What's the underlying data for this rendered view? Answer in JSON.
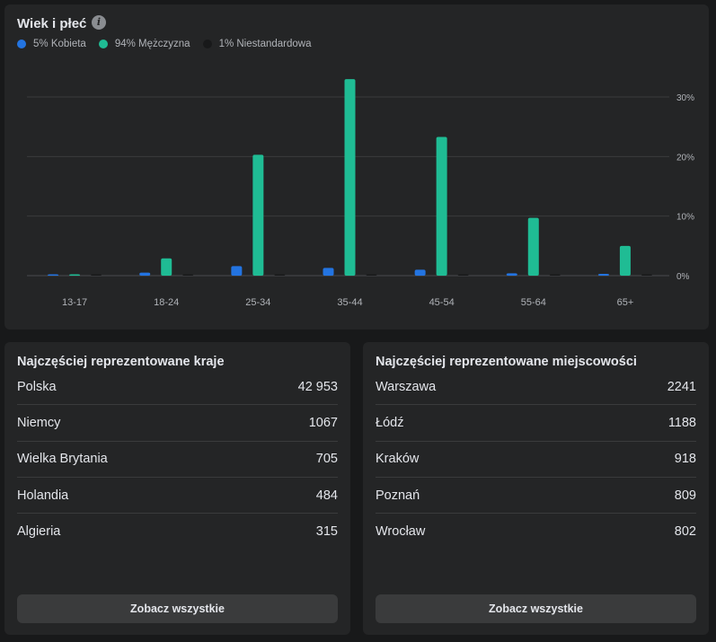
{
  "age_gender": {
    "title": "Wiek i płeć",
    "info_icon": "info-icon",
    "legend": [
      {
        "label": "5% Kobieta",
        "color": "#2374e1"
      },
      {
        "label": "94% Mężczyzna",
        "color": "#1fbc94"
      },
      {
        "label": "1% Niestandardowa",
        "color": "#18191a"
      }
    ]
  },
  "chart_data": {
    "type": "bar",
    "title": "Wiek i płeć",
    "categories": [
      "13-17",
      "18-24",
      "25-34",
      "35-44",
      "45-54",
      "55-64",
      "65+"
    ],
    "series": [
      {
        "name": "Kobieta",
        "color": "#2374e1",
        "values": [
          0.05,
          0.5,
          1.6,
          1.3,
          1.0,
          0.4,
          0.3
        ]
      },
      {
        "name": "Mężczyzna",
        "color": "#1fbc94",
        "values": [
          0.2,
          2.9,
          20.3,
          33.0,
          23.3,
          9.7,
          5.0
        ]
      },
      {
        "name": "Niestandardowa",
        "color": "#18191a",
        "values": [
          0.03,
          0.03,
          0.1,
          0.2,
          0.1,
          0.03,
          0.03
        ]
      }
    ],
    "y_ticks": [
      "0%",
      "10%",
      "20%",
      "30%"
    ],
    "ylim": [
      0,
      35
    ],
    "grid": true,
    "legend_position": "top-left"
  },
  "countries": {
    "title": "Najczęściej reprezentowane kraje",
    "rows": [
      {
        "name": "Polska",
        "value": "42 953"
      },
      {
        "name": "Niemcy",
        "value": "1067"
      },
      {
        "name": "Wielka Brytania",
        "value": "705"
      },
      {
        "name": "Holandia",
        "value": "484"
      },
      {
        "name": "Algieria",
        "value": "315"
      }
    ],
    "button": "Zobacz wszystkie"
  },
  "cities": {
    "title": "Najczęściej reprezentowane miejscowości",
    "rows": [
      {
        "name": "Warszawa",
        "value": "2241"
      },
      {
        "name": "Łódź",
        "value": "1188"
      },
      {
        "name": "Kraków",
        "value": "918"
      },
      {
        "name": "Poznań",
        "value": "809"
      },
      {
        "name": "Wrocław",
        "value": "802"
      }
    ],
    "button": "Zobacz wszystkie"
  }
}
